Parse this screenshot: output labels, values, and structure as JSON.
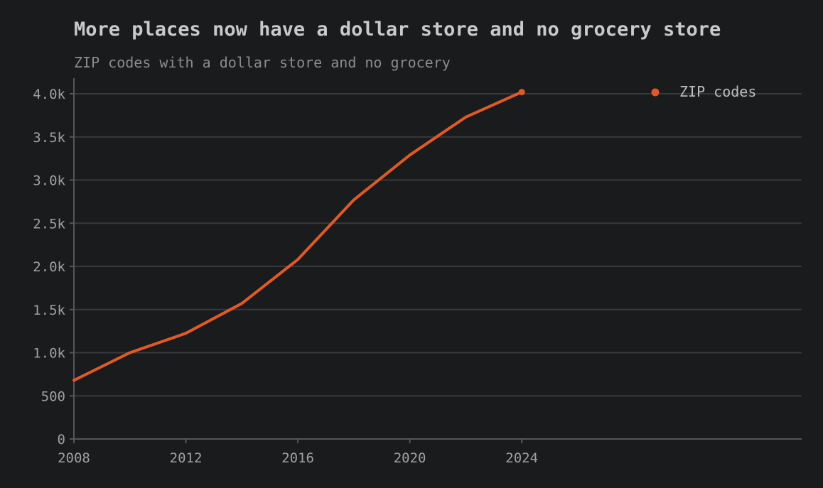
{
  "chart_data": {
    "type": "line",
    "title": "More places now have a dollar store and no grocery store",
    "subtitle": "ZIP codes with a dollar store and no grocery",
    "xlabel": "",
    "ylabel": "",
    "xlim": [
      2008,
      2034
    ],
    "ylim": [
      0,
      4200
    ],
    "x_ticks": [
      2008,
      2012,
      2016,
      2020,
      2024
    ],
    "y_ticks": [
      0,
      500,
      1000,
      1500,
      2000,
      2500,
      3000,
      3500,
      4000
    ],
    "y_tick_labels": [
      "0",
      "500",
      "1.0k",
      "1.5k",
      "2.0k",
      "2.5k",
      "3.0k",
      "3.5k",
      "4.0k"
    ],
    "grid": "horizontal",
    "legend": "top-right",
    "series": [
      {
        "name": "ZIP codes",
        "color": "#e05a28",
        "x": [
          2008,
          2010,
          2012,
          2014,
          2016,
          2018,
          2020,
          2022,
          2024
        ],
        "values": [
          680,
          1000,
          1225,
          1570,
          2080,
          2770,
          3290,
          3730,
          4020
        ]
      }
    ]
  },
  "colors": {
    "background": "#1a1b1d",
    "grid": "#38393c",
    "axis": "#555658",
    "accent": "#e05a28"
  }
}
